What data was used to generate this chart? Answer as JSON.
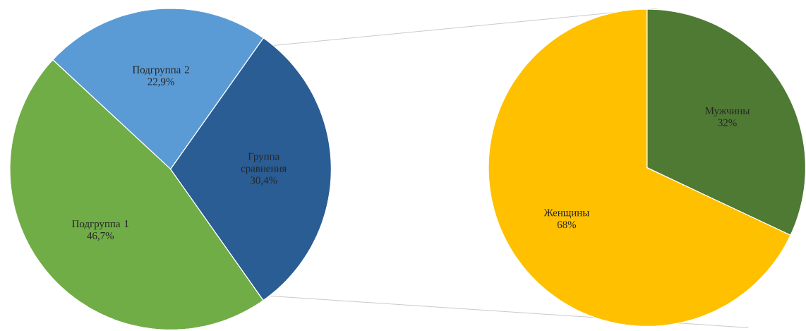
{
  "chart_data": [
    {
      "type": "pie",
      "categories": [
        "Подгруппа 2",
        "Подгруппа 1",
        "Группа сравнения"
      ],
      "values": [
        22.9,
        46.7,
        30.4
      ],
      "colors": [
        "#5b9bd5",
        "#70ad47",
        "#2a5d94"
      ],
      "value_labels": [
        "22,9%",
        "46,7%",
        "30,4%"
      ]
    },
    {
      "type": "pie",
      "categories": [
        "Мужчины",
        "Женщины"
      ],
      "values": [
        32,
        68
      ],
      "colors": [
        "#4e7a34",
        "#ffc000"
      ],
      "value_labels": [
        "32%",
        "68%"
      ]
    }
  ]
}
